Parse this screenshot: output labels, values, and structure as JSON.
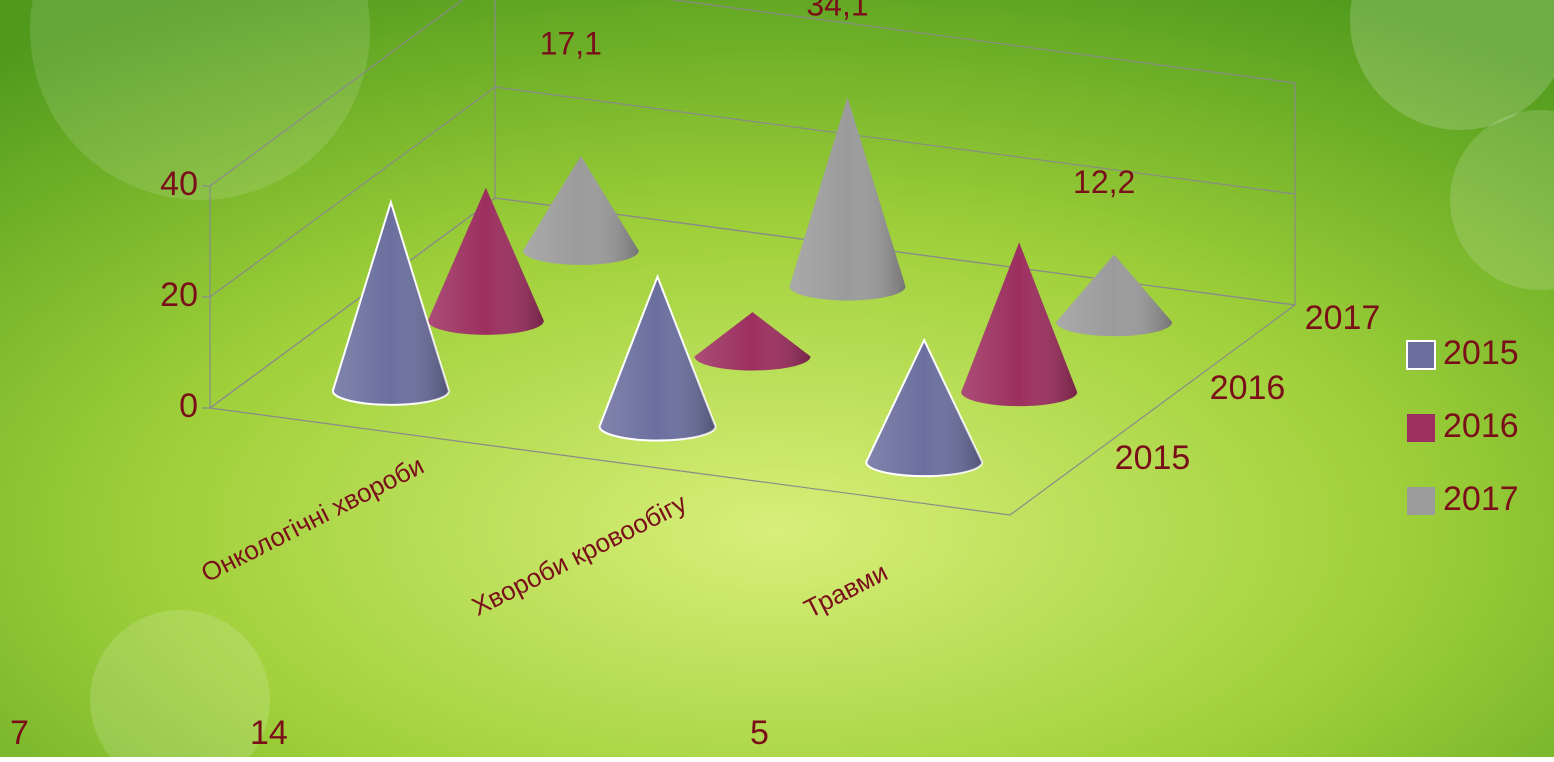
{
  "chart_data": {
    "type": "cone3d",
    "categories": [
      "Онкологічні хвороби",
      "Хвороби кровообігу",
      "Травми"
    ],
    "series": [
      {
        "name": "2015",
        "color": "#6b6f9e",
        "values": [
          34,
          27,
          22
        ]
      },
      {
        "name": "2016",
        "color": "#9c2f5f",
        "values": [
          24,
          8,
          27
        ]
      },
      {
        "name": "2017",
        "color": "#9b9b9b",
        "values": [
          17.1,
          34.1,
          12.2
        ],
        "value_labels": [
          "17,1",
          "34,1",
          "12,2"
        ]
      }
    ],
    "ylim": [
      0,
      40
    ],
    "yticks": [
      0,
      20,
      40
    ],
    "grid": true,
    "legend": "right",
    "notes": [
      "7",
      "14",
      "5"
    ]
  }
}
